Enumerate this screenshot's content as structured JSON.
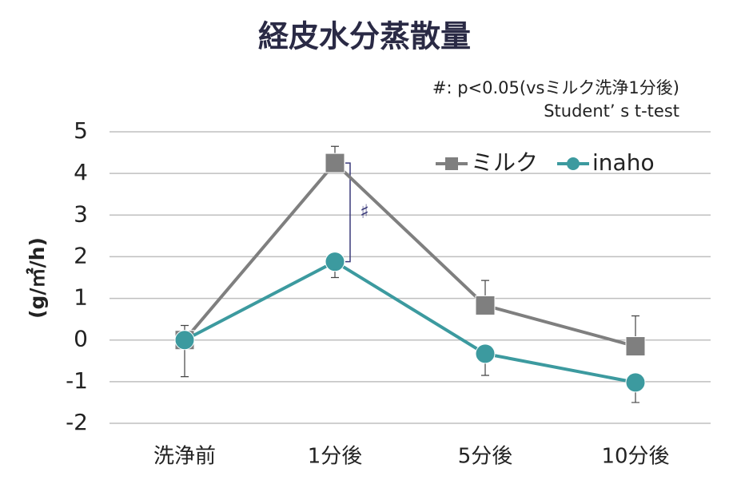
{
  "chart_data": {
    "type": "line",
    "title": "経皮水分蒸散量",
    "y_label": "(g/㎡/h)",
    "annotations": [
      "#: p<0.05(vsミルク洗浄1分後)",
      "Student’ s t-test"
    ],
    "significance_mark": "♯",
    "categories": [
      "洗浄前",
      "1分後",
      "5分後",
      "10分後"
    ],
    "series": [
      {
        "name": "ミルク",
        "color": "#7f7f7f",
        "marker": "square",
        "values": [
          0,
          4.25,
          0.83,
          -0.15
        ],
        "errors": [
          0.35,
          0.4,
          0.6,
          0.73
        ],
        "error_direction": "plus"
      },
      {
        "name": "inaho",
        "color": "#3c9a9f",
        "marker": "circle",
        "values": [
          0,
          1.88,
          -0.33,
          -1.02
        ],
        "errors": [
          0.88,
          0.38,
          0.52,
          0.48
        ],
        "error_direction": "minus"
      }
    ],
    "ylim": [
      -2,
      5
    ],
    "yticks": [
      -2,
      -1,
      0,
      1,
      2,
      3,
      4,
      5
    ],
    "grid": true,
    "legend": "top-right"
  }
}
